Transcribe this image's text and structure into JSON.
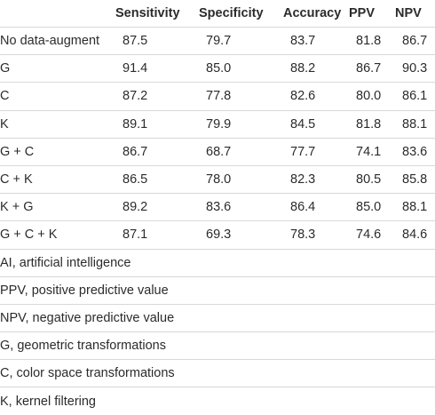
{
  "table": {
    "headers": [
      "",
      "Sensitivity",
      "Specificity",
      "Accuracy",
      "PPV",
      "NPV"
    ],
    "rows": [
      {
        "label": "No data-augment",
        "values": [
          "87.5",
          "79.7",
          "83.7",
          "81.8",
          "86.7"
        ]
      },
      {
        "label": "G",
        "values": [
          "91.4",
          "85.0",
          "88.2",
          "86.7",
          "90.3"
        ]
      },
      {
        "label": "C",
        "values": [
          "87.2",
          "77.8",
          "82.6",
          "80.0",
          "86.1"
        ]
      },
      {
        "label": "K",
        "values": [
          "89.1",
          "79.9",
          "84.5",
          "81.8",
          "88.1"
        ]
      },
      {
        "label": "G + C",
        "values": [
          "86.7",
          "68.7",
          "77.7",
          "74.1",
          "83.6"
        ]
      },
      {
        "label": "C + K",
        "values": [
          "86.5",
          "78.0",
          "82.3",
          "80.5",
          "85.8"
        ]
      },
      {
        "label": "K + G",
        "values": [
          "89.2",
          "83.6",
          "86.4",
          "85.0",
          "88.1"
        ]
      },
      {
        "label": "G + C + K",
        "values": [
          "87.1",
          "69.3",
          "78.3",
          "74.6",
          "84.6"
        ]
      }
    ]
  },
  "footnotes": [
    "AI, artificial intelligence",
    "PPV, positive predictive value",
    "NPV, negative predictive value",
    "G, geometric transformations",
    "C, color space transformations",
    "K, kernel filtering"
  ]
}
